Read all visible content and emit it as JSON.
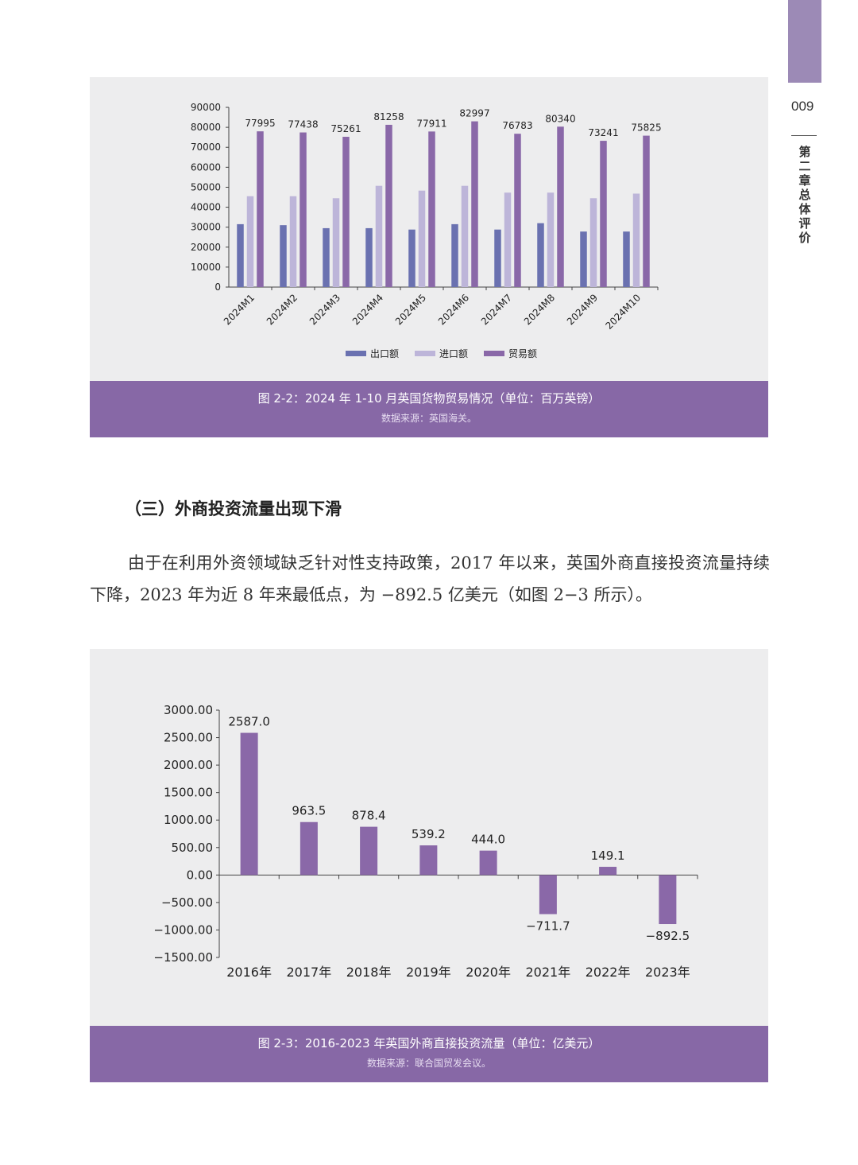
{
  "page": {
    "number": "009",
    "chapter_label": "第二章 总体评价"
  },
  "figure1": {
    "caption": "图 2-2：2024 年 1-10 月英国货物贸易情况（单位：百万英镑）",
    "source": "数据来源：英国海关。",
    "chart_data": {
      "type": "bar",
      "categories": [
        "2024M1",
        "2024M2",
        "2024M3",
        "2024M4",
        "2024M5",
        "2024M6",
        "2024M7",
        "2024M8",
        "2024M9",
        "2024M10"
      ],
      "series": [
        {
          "name": "出口额",
          "color": "#6a71b0",
          "values": [
            31500,
            31000,
            29500,
            29500,
            28800,
            31500,
            28800,
            32000,
            27800,
            27800
          ]
        },
        {
          "name": "进口额",
          "color": "#bdb5d9",
          "values": [
            45500,
            45500,
            44500,
            50700,
            48300,
            50700,
            47300,
            47300,
            44500,
            46800
          ]
        },
        {
          "name": "贸易额",
          "color": "#8a68a8",
          "values": [
            77995,
            77438,
            75261,
            81258,
            77911,
            82997,
            76783,
            80340,
            73241,
            75825
          ]
        }
      ],
      "data_labels": [
        "77995",
        "77438",
        "75261",
        "81258",
        "77911",
        "82997",
        "76783",
        "80340",
        "73241",
        "75825"
      ],
      "yticks": [
        "0",
        "10000",
        "20000",
        "30000",
        "40000",
        "50000",
        "60000",
        "70000",
        "80000",
        "90000"
      ],
      "ylim": [
        0,
        90000
      ],
      "legend_position": "bottom"
    }
  },
  "section": {
    "heading": "（三）外商投资流量出现下滑",
    "paragraph": "由于在利用外资领域缺乏针对性支持政策，2017 年以来，英国外商直接投资流量持续下降，2023 年为近 8 年来最低点，为 −892.5 亿美元（如图 2−3 所示）。"
  },
  "figure2": {
    "caption": "图 2-3：2016-2023 年英国外商直接投资流量（单位：亿美元）",
    "source": "数据来源：联合国贸发会议。",
    "chart_data": {
      "type": "bar",
      "categories": [
        "2016年",
        "2017年",
        "2018年",
        "2019年",
        "2020年",
        "2021年",
        "2022年",
        "2023年"
      ],
      "values": [
        2587.0,
        963.5,
        878.4,
        539.2,
        444.0,
        -711.7,
        149.1,
        -892.5
      ],
      "data_labels": [
        "2587.0",
        "963.5",
        "878.4",
        "539.2",
        "444.0",
        "−711.7",
        "149.1",
        "−892.5"
      ],
      "yticks": [
        "−1500.00",
        "−1000.00",
        "−500.00",
        "0.00",
        "500.00",
        "1000.00",
        "1500.00",
        "2000.00",
        "2500.00",
        "3000.00"
      ],
      "ylim": [
        -1500,
        3000
      ],
      "color": "#8a68a8"
    }
  }
}
